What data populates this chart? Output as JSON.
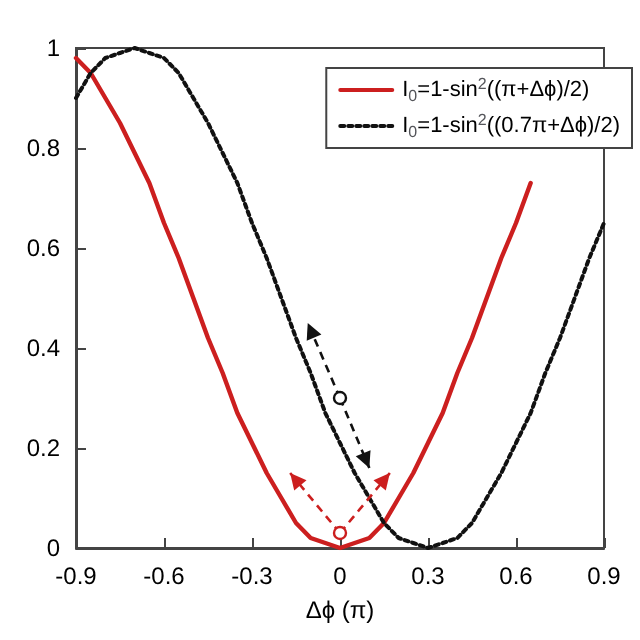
{
  "chart_data": {
    "type": "line",
    "xlabel": "Δϕ (π)",
    "x": [
      -0.9,
      -0.85,
      -0.8,
      -0.75,
      -0.7,
      -0.65,
      -0.6,
      -0.55,
      -0.5,
      -0.45,
      -0.4,
      -0.35,
      -0.3,
      -0.25,
      -0.2,
      -0.15,
      -0.1,
      -0.05,
      0,
      0.05,
      0.1,
      0.15,
      0.2,
      0.25,
      0.3,
      0.35,
      0.4,
      0.45,
      0.5,
      0.55,
      0.6,
      0.65,
      0.7,
      0.75,
      0.8,
      0.85,
      0.9
    ],
    "series": [
      {
        "name": "I$_{0}$=1-sin$^{2}$((π+Δϕ)/2)",
        "color": "#cc1f1f",
        "line_style": "solid",
        "values": [
          0.98,
          0.95,
          0.9,
          0.85,
          0.79,
          0.73,
          0.65,
          0.58,
          0.5,
          0.42,
          0.35,
          0.27,
          0.21,
          0.15,
          0.1,
          0.05,
          0.02,
          0.01,
          0,
          0.01,
          0.02,
          0.05,
          0.1,
          0.15,
          0.21,
          0.27,
          0.35,
          0.42,
          0.5,
          0.58,
          0.65,
          0.73,
          null,
          null,
          null,
          null,
          null
        ]
      },
      {
        "name": "I$_{0}$=1-sin$^{2}$((0.7π+Δϕ)/2)",
        "color": "#111111",
        "line_style": "dotted",
        "values": [
          0.9,
          0.95,
          0.98,
          0.99,
          1,
          0.99,
          0.98,
          0.95,
          0.9,
          0.85,
          0.79,
          0.73,
          0.65,
          0.58,
          0.5,
          0.42,
          0.35,
          0.27,
          0.21,
          0.15,
          0.1,
          0.05,
          0.02,
          0.01,
          0,
          0.01,
          0.02,
          0.05,
          0.1,
          0.15,
          0.21,
          0.27,
          0.35,
          0.42,
          0.5,
          0.58,
          0.65
        ]
      }
    ],
    "xlim": [
      -0.9,
      0.9
    ],
    "xticks": [
      -0.9,
      -0.6,
      -0.3,
      0,
      0.3,
      0.6,
      0.9
    ],
    "ylim": [
      0,
      1
    ],
    "yticks": [
      0,
      0.2,
      0.4,
      0.6,
      0.8,
      1
    ],
    "grid": false,
    "legend": "top right",
    "marker": "none"
  }
}
